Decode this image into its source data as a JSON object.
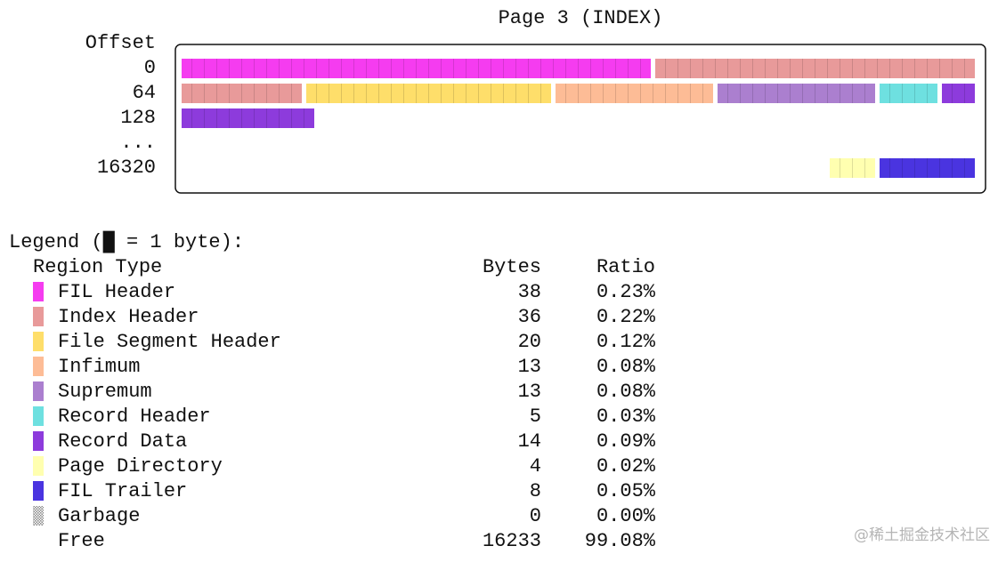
{
  "title": "Page 3 (INDEX)",
  "offset_label": "Offset",
  "offsets": [
    "0",
    "64",
    "128",
    "...",
    "16320"
  ],
  "legend": {
    "title": "Legend (█ = 1 byte):",
    "columns": [
      "Region Type",
      "Bytes",
      "Ratio"
    ],
    "rows": [
      {
        "name": "FIL Header",
        "bytes": 38,
        "ratio": "0.23%",
        "color": "#f53cf0"
      },
      {
        "name": "Index Header",
        "bytes": 36,
        "ratio": "0.22%",
        "color": "#e89a9a"
      },
      {
        "name": "File Segment Header",
        "bytes": 20,
        "ratio": "0.12%",
        "color": "#fede6a"
      },
      {
        "name": "Infimum",
        "bytes": 13,
        "ratio": "0.08%",
        "color": "#fdbc96"
      },
      {
        "name": "Supremum",
        "bytes": 13,
        "ratio": "0.08%",
        "color": "#ab7fcf"
      },
      {
        "name": "Record Header",
        "bytes": 5,
        "ratio": "0.03%",
        "color": "#6ee0e0"
      },
      {
        "name": "Record Data",
        "bytes": 14,
        "ratio": "0.09%",
        "color": "#8d3bdc"
      },
      {
        "name": "Page Directory",
        "bytes": 4,
        "ratio": "0.02%",
        "color": "#ffffb0"
      },
      {
        "name": "FIL Trailer",
        "bytes": 8,
        "ratio": "0.05%",
        "color": "#4a34e0"
      },
      {
        "name": "Garbage",
        "bytes": 0,
        "ratio": "0.00%",
        "color": "#888888"
      },
      {
        "name": "Free",
        "bytes": 16233,
        "ratio": "99.08%"
      }
    ]
  },
  "watermark": "@稀土掘金技术社区"
}
